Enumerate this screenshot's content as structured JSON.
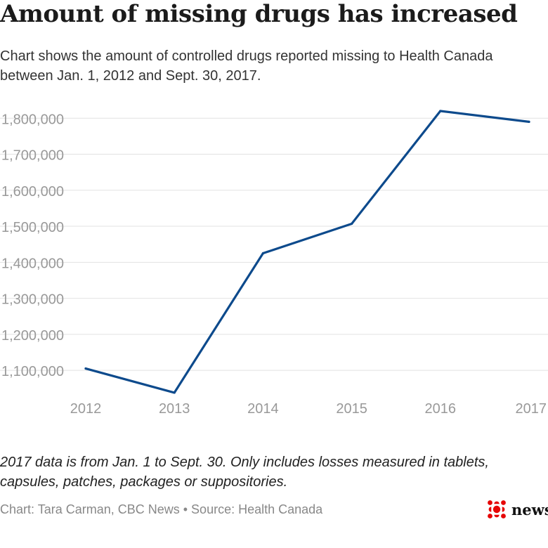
{
  "header": {
    "title": "Amount of missing drugs has increased",
    "subtitle": "Chart shows the amount of controlled drugs reported missing to Health Canada between Jan. 1, 2012 and Sept. 30, 2017."
  },
  "chart_data": {
    "type": "line",
    "x": [
      "2012",
      "2013",
      "2014",
      "2015",
      "2016",
      "2017"
    ],
    "series": [
      {
        "values": [
          1105000,
          1038000,
          1425000,
          1507000,
          1820000,
          1790000
        ],
        "color": "#0d4a8c"
      }
    ],
    "yticks": [
      1100000,
      1200000,
      1300000,
      1400000,
      1500000,
      1600000,
      1700000,
      1800000
    ],
    "ytick_labels": [
      "1,100,000",
      "1,200,000",
      "1,300,000",
      "1,400,000",
      "1,500,000",
      "1,600,000",
      "1,700,000",
      "1,800,000"
    ],
    "ylim": [
      1030000,
      1820000
    ],
    "grid": true,
    "xlabel": "",
    "ylabel": ""
  },
  "footer": {
    "note": "2017 data is from Jan. 1 to Sept. 30. Only includes losses measured in tablets, capsules, patches, packages or suppositories.",
    "credit": "Chart: Tara Carman, CBC News • Source: Health Canada",
    "logo_text": "news",
    "logo_icon": "cbc-gem-icon",
    "logo_color": "#e60505"
  }
}
